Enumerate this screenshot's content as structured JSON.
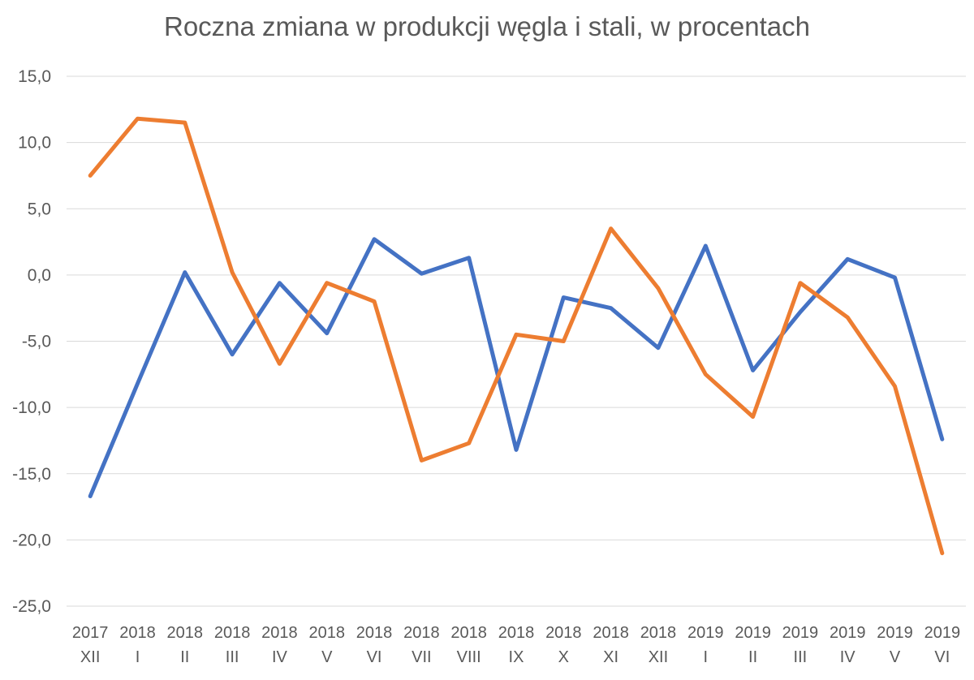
{
  "chart_data": {
    "type": "line",
    "title": "Roczna zmiana w produkcji węgla i stali, w procentach",
    "xlabel": "",
    "ylabel": "",
    "categories": [
      [
        "2017",
        "XII"
      ],
      [
        "2018",
        "I"
      ],
      [
        "2018",
        "II"
      ],
      [
        "2018",
        "III"
      ],
      [
        "2018",
        "IV"
      ],
      [
        "2018",
        "V"
      ],
      [
        "2018",
        "VI"
      ],
      [
        "2018",
        "VII"
      ],
      [
        "2018",
        "VIII"
      ],
      [
        "2018",
        "IX"
      ],
      [
        "2018",
        "X"
      ],
      [
        "2018",
        "XI"
      ],
      [
        "2018",
        "XII"
      ],
      [
        "2019",
        "I"
      ],
      [
        "2019",
        "II"
      ],
      [
        "2019",
        "III"
      ],
      [
        "2019",
        "IV"
      ],
      [
        "2019",
        "V"
      ],
      [
        "2019",
        "VI"
      ]
    ],
    "ylim": [
      -25,
      15
    ],
    "yticks": [
      "15,0",
      "10,0",
      "5,0",
      "0,0",
      "-5,0",
      "-10,0",
      "-15,0",
      "-20,0",
      "-25,0"
    ],
    "grid": true,
    "series": [
      {
        "color": "#4472C4",
        "values": [
          -16.7,
          -8.2,
          0.2,
          -6.0,
          -0.6,
          -4.4,
          2.7,
          0.1,
          1.3,
          -13.2,
          -1.7,
          -2.5,
          -5.5,
          2.2,
          -7.2,
          -2.8,
          1.2,
          -0.2,
          -12.4
        ]
      },
      {
        "color": "#ED7D31",
        "values": [
          7.5,
          11.8,
          11.5,
          0.2,
          -6.7,
          -0.6,
          -2.0,
          -14.0,
          -12.7,
          -4.5,
          -5.0,
          3.5,
          -1.0,
          -7.5,
          -10.7,
          -0.6,
          -3.2,
          -8.4,
          -21.0
        ]
      }
    ]
  }
}
